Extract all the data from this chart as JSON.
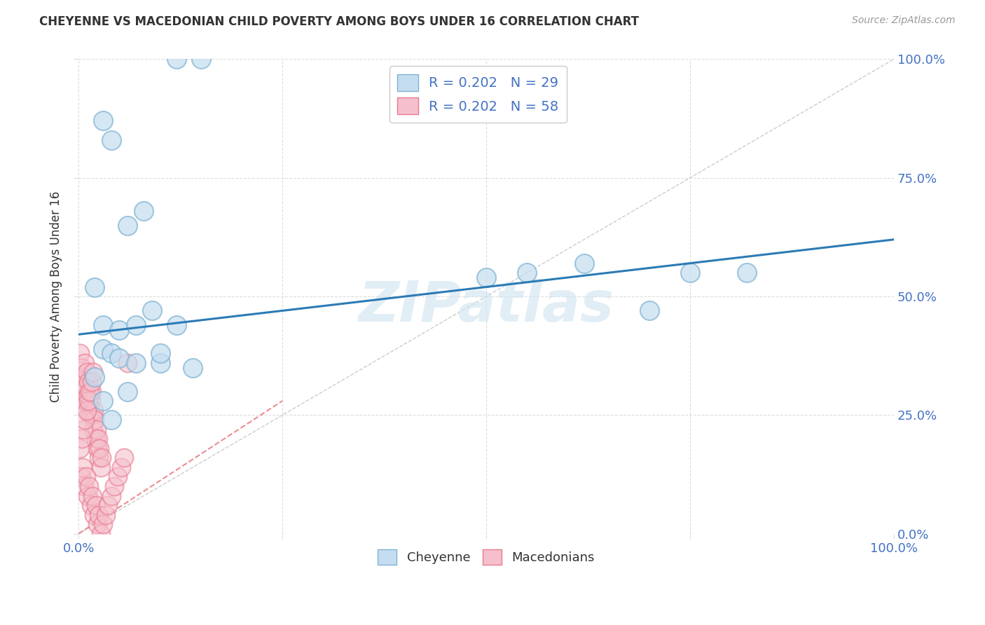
{
  "title": "CHEYENNE VS MACEDONIAN CHILD POVERTY AMONG BOYS UNDER 16 CORRELATION CHART",
  "source": "Source: ZipAtlas.com",
  "ylabel_label": "Child Poverty Among Boys Under 16",
  "xlim": [
    0,
    1
  ],
  "ylim": [
    0,
    1
  ],
  "xticks": [
    0,
    0.25,
    0.5,
    0.75,
    1.0
  ],
  "yticks": [
    0,
    0.25,
    0.5,
    0.75,
    1.0
  ],
  "xtick_labels": [
    "0.0%",
    "",
    "",
    "",
    "100.0%"
  ],
  "ytick_labels_right": [
    "0.0%",
    "25.0%",
    "50.0%",
    "75.0%",
    "100.0%"
  ],
  "cheyenne_color_fill": "#b8d4ea",
  "cheyenne_color_edge": "#7fb3d3",
  "macedonian_color_fill": "#f9b8c4",
  "macedonian_color_edge": "#e87a90",
  "cheyenne_R": 0.202,
  "cheyenne_N": 29,
  "macedonian_R": 0.202,
  "macedonian_N": 58,
  "watermark": "ZIPatlas",
  "background_color": "#ffffff",
  "trend_cheyenne_color": "#2c7bb6",
  "trend_macedonian_color": "#e8707a",
  "diagonal_color": "#cccccc",
  "cheyenne_x": [
    0.03,
    0.04,
    0.06,
    0.08,
    0.02,
    0.03,
    0.05,
    0.07,
    0.09,
    0.12,
    0.02,
    0.03,
    0.04,
    0.06,
    0.1,
    0.14,
    0.5,
    0.55,
    0.62,
    0.7,
    0.75,
    0.82,
    0.03,
    0.04,
    0.05,
    0.07,
    0.1,
    0.12,
    0.15
  ],
  "cheyenne_y": [
    0.87,
    0.83,
    0.65,
    0.68,
    0.52,
    0.44,
    0.43,
    0.44,
    0.47,
    0.44,
    0.33,
    0.28,
    0.24,
    0.3,
    0.36,
    0.35,
    0.54,
    0.55,
    0.57,
    0.47,
    0.55,
    0.55,
    0.39,
    0.38,
    0.37,
    0.36,
    0.38,
    1.0,
    1.0
  ],
  "macedonian_x": [
    0.002,
    0.003,
    0.004,
    0.005,
    0.006,
    0.007,
    0.008,
    0.009,
    0.01,
    0.011,
    0.012,
    0.013,
    0.014,
    0.015,
    0.016,
    0.017,
    0.018,
    0.019,
    0.02,
    0.021,
    0.022,
    0.023,
    0.024,
    0.025,
    0.026,
    0.027,
    0.028,
    0.003,
    0.005,
    0.007,
    0.009,
    0.011,
    0.013,
    0.015,
    0.017,
    0.019,
    0.021,
    0.023,
    0.025,
    0.027,
    0.03,
    0.033,
    0.036,
    0.04,
    0.044,
    0.048,
    0.052,
    0.056,
    0.002,
    0.004,
    0.006,
    0.008,
    0.01,
    0.012,
    0.014,
    0.016,
    0.018,
    0.06
  ],
  "macedonian_y": [
    0.38,
    0.32,
    0.35,
    0.3,
    0.33,
    0.28,
    0.36,
    0.31,
    0.34,
    0.29,
    0.32,
    0.27,
    0.25,
    0.28,
    0.3,
    0.25,
    0.22,
    0.26,
    0.24,
    0.2,
    0.22,
    0.18,
    0.2,
    0.16,
    0.18,
    0.14,
    0.16,
    0.12,
    0.14,
    0.1,
    0.12,
    0.08,
    0.1,
    0.06,
    0.08,
    0.04,
    0.06,
    0.02,
    0.04,
    0.0,
    0.02,
    0.04,
    0.06,
    0.08,
    0.1,
    0.12,
    0.14,
    0.16,
    0.18,
    0.2,
    0.22,
    0.24,
    0.26,
    0.28,
    0.3,
    0.32,
    0.34,
    0.36
  ]
}
